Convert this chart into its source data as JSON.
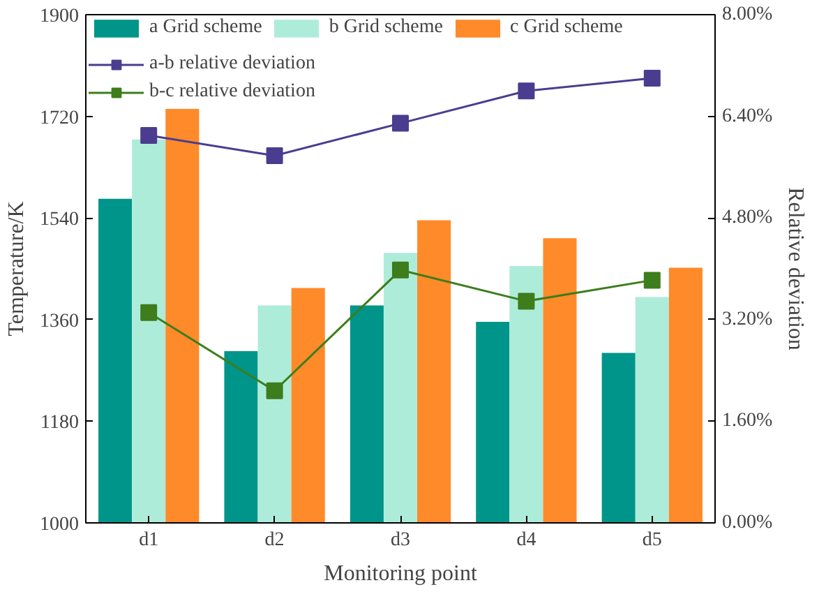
{
  "chart_data": {
    "type": "bar",
    "xlabel": "Monitoring point",
    "ylabel": "Temperature/K",
    "y2label": "Relative deviation",
    "categories": [
      "d1",
      "d2",
      "d3",
      "d4",
      "d5"
    ],
    "series": [
      {
        "name": "a Grid scheme",
        "color": "#00958a",
        "values": [
          1574,
          1304,
          1385,
          1356,
          1301
        ]
      },
      {
        "name": "b Grid scheme",
        "color": "#aeecda",
        "values": [
          1679,
          1385,
          1478,
          1455,
          1400
        ]
      },
      {
        "name": "c Grid scheme",
        "color": "#ff8a2a",
        "values": [
          1733,
          1416,
          1536,
          1504,
          1452
        ]
      },
      {
        "name": "a-b relative deviation",
        "type": "line",
        "axis": "y2",
        "color": "#4a3d90",
        "marker": "square",
        "values": [
          6.1,
          5.78,
          6.29,
          6.8,
          7.0
        ]
      },
      {
        "name": "b-c relative deviation",
        "type": "line",
        "axis": "y2",
        "color": "#3d7d1c",
        "marker": "square",
        "values": [
          3.31,
          2.08,
          3.98,
          3.49,
          3.82
        ]
      }
    ],
    "ylim": [
      1000,
      1900
    ],
    "yticks": [
      1000,
      1180,
      1360,
      1540,
      1720,
      1900
    ],
    "y2lim": [
      0,
      8
    ],
    "y2ticks": [
      {
        "value": 0,
        "label": "0.00%"
      },
      {
        "value": 1.6,
        "label": "1.60%"
      },
      {
        "value": 3.2,
        "label": "3.20%"
      },
      {
        "value": 4.8,
        "label": "4.80%"
      },
      {
        "value": 6.4,
        "label": "6.40%"
      },
      {
        "value": 8,
        "label": "8.00%"
      }
    ],
    "grid": false,
    "legend": "top left"
  }
}
